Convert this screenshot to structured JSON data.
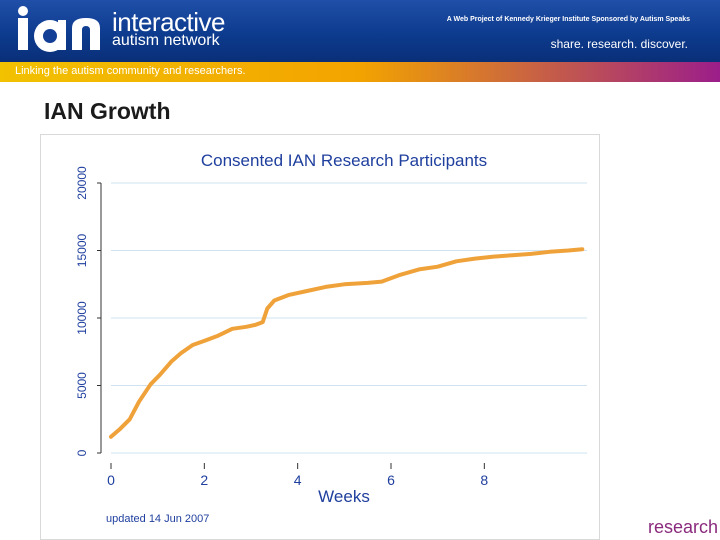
{
  "header": {
    "logo_text": "IAN",
    "name_line1": "interactive",
    "name_line2": "autism network",
    "sponsor": "A Web Project of Kennedy Krieger Institute  Sponsored by Autism Speaks",
    "tagline": "share. research. discover.",
    "strip_text": "Linking the autism community and researchers."
  },
  "page": {
    "title": "IAN Growth",
    "footer_word": "research"
  },
  "colors": {
    "line": "#f0a23a",
    "grid": "#cfe3f2",
    "text": "#1f3f9e",
    "accent": "#9b1e8a"
  },
  "chart_data": {
    "type": "line",
    "title": "Consented IAN Research Participants",
    "xlabel": "Weeks",
    "ylabel": "",
    "note": "updated 14 Jun 2007",
    "xlim": [
      0,
      10.2
    ],
    "ylim": [
      0,
      20000
    ],
    "xticks": [
      0,
      2,
      4,
      6,
      8
    ],
    "yticks": [
      0,
      5000,
      10000,
      15000,
      20000
    ],
    "grid": true,
    "series": [
      {
        "x": [
          0,
          0.2,
          0.4,
          0.6,
          0.85,
          1.05,
          1.3,
          1.5,
          1.75,
          2.0,
          2.3,
          2.6,
          2.9,
          3.1,
          3.25,
          3.35,
          3.5,
          3.8,
          4.2,
          4.6,
          5.0,
          5.5,
          5.8,
          6.2,
          6.6,
          7.0,
          7.4,
          7.8,
          8.2,
          8.6,
          9.0,
          9.4,
          9.8,
          10.1
        ],
        "y": [
          1200,
          1800,
          2500,
          3800,
          5100,
          5800,
          6800,
          7400,
          8000,
          8300,
          8700,
          9200,
          9350,
          9500,
          9700,
          10700,
          11300,
          11700,
          12000,
          12300,
          12500,
          12600,
          12700,
          13200,
          13600,
          13800,
          14200,
          14400,
          14550,
          14650,
          14750,
          14900,
          15000,
          15100
        ]
      }
    ]
  }
}
